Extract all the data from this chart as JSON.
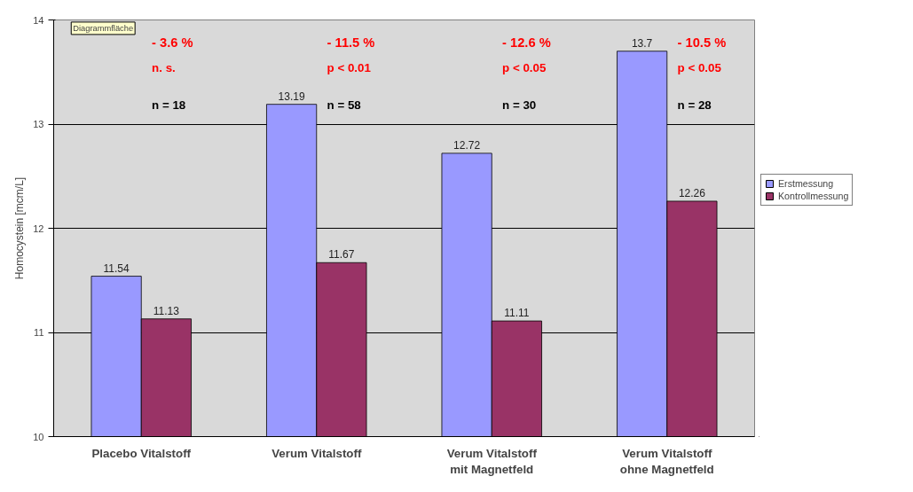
{
  "chart_data": {
    "type": "bar",
    "ylabel": "Homocystein [mcm/L]",
    "categories": [
      "Placebo Vitalstoff",
      "Verum Vitalstoff",
      "Verum Vitalstoff\nmit Magnetfeld",
      "Verum Vitalstoff\nohne Magnetfeld"
    ],
    "series": [
      {
        "name": "Erstmessung",
        "color": "#9999ff",
        "values": [
          11.54,
          13.19,
          12.72,
          13.7
        ]
      },
      {
        "name": "Kontrollmessung",
        "color": "#993366",
        "values": [
          11.13,
          11.67,
          11.11,
          12.26
        ]
      }
    ],
    "ylim": [
      10,
      14
    ],
    "yticks": [
      10,
      11,
      12,
      13,
      14
    ],
    "grid": "y",
    "legend": "right",
    "data_labels": true,
    "annotations": [
      "- 3.6 %",
      "n. s.",
      "n = 18",
      "- 11.5 %",
      "p < 0.01",
      "n = 58",
      "- 12.6 %",
      "p < 0.05",
      "n = 30",
      "- 10.5 %",
      "p < 0.05",
      "n = 28",
      "Diagrammfläche"
    ]
  }
}
